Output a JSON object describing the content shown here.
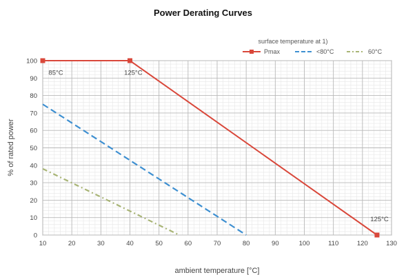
{
  "chart_data": {
    "type": "line",
    "title": "Power Derating Curves",
    "xlabel": "ambient temperature [°C]",
    "ylabel": "% of rated power",
    "xlim": [
      10,
      130
    ],
    "ylim": [
      0,
      100
    ],
    "x_ticks": [
      "10",
      "20",
      "30",
      "40",
      "50",
      "60",
      "70",
      "80",
      "90",
      "100",
      "110",
      "120",
      "130"
    ],
    "y_ticks": [
      "0",
      "10",
      "20",
      "30",
      "40",
      "50",
      "60",
      "70",
      "80",
      "90",
      "100"
    ],
    "grid": true,
    "legend_title": "surface temperature at 1)",
    "legend_position": "top-right",
    "series": [
      {
        "name": "Pmax",
        "color": "#d9473a",
        "style": "solid",
        "marker": "square",
        "x": [
          10,
          40,
          125
        ],
        "y": [
          100,
          100,
          0
        ]
      },
      {
        "name": "<80°C",
        "color": "#3d8fd1",
        "style": "dashed",
        "marker": "none",
        "x": [
          10,
          80
        ],
        "y": [
          75,
          0
        ]
      },
      {
        "name": "60°C",
        "color": "#a8b475",
        "style": "dashdot",
        "marker": "none",
        "x": [
          10,
          57
        ],
        "y": [
          38,
          0
        ]
      }
    ],
    "annotations": [
      {
        "text": "85°C",
        "x": 12,
        "y": 93
      },
      {
        "text": "125°C",
        "x": 38,
        "y": 93
      },
      {
        "text": "125°C",
        "x": 129,
        "y": 9
      }
    ]
  }
}
